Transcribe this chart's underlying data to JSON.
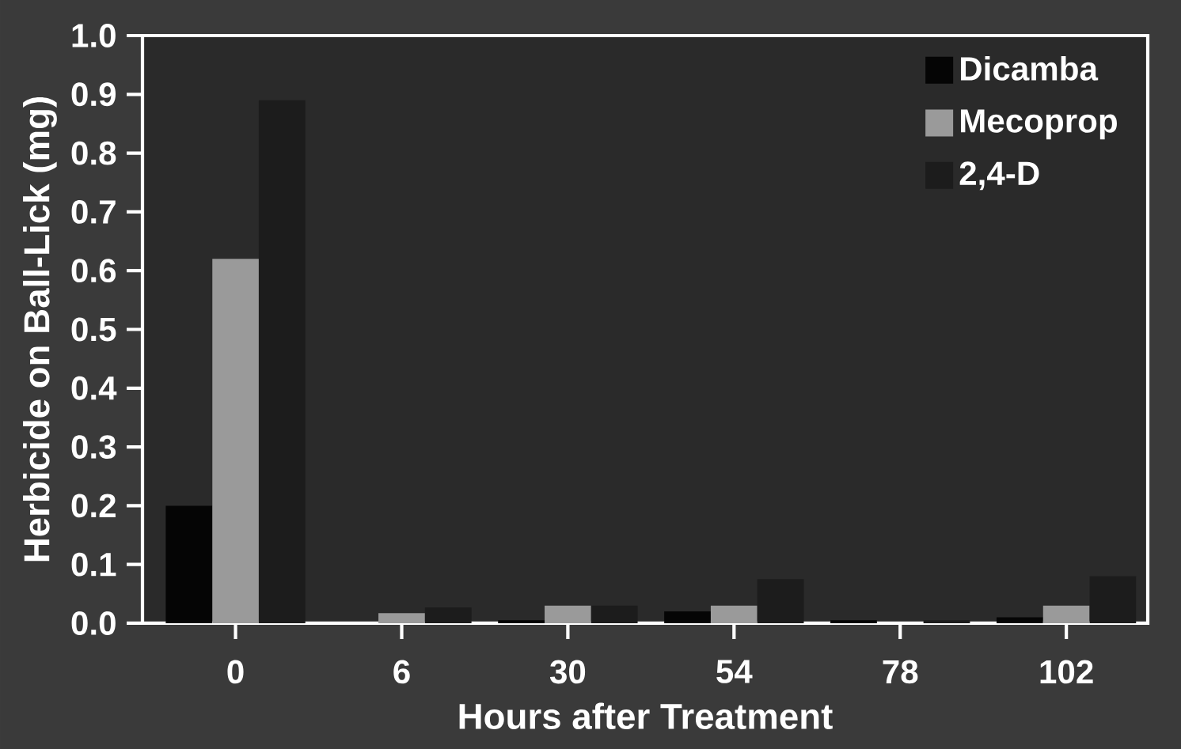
{
  "chart_data": {
    "type": "bar",
    "xlabel": "Hours after Treatment",
    "ylabel": "Herbicide on Ball-Lick (mg)",
    "categories": [
      "0",
      "6",
      "30",
      "54",
      "78",
      "102"
    ],
    "series": [
      {
        "name": "Dicamba",
        "color": "#050505",
        "values": [
          0.2,
          null,
          0.005,
          0.02,
          0.005,
          0.01
        ]
      },
      {
        "name": "Mecoprop",
        "color": "#9a9a9a",
        "values": [
          0.62,
          0.017,
          0.03,
          0.03,
          null,
          0.03
        ]
      },
      {
        "name": "2,4-D",
        "color": "#1c1c1c",
        "values": [
          0.89,
          0.027,
          0.03,
          0.075,
          0.005,
          0.08
        ]
      }
    ],
    "ylim": [
      0,
      1.0
    ],
    "yticks": [
      {
        "value": 0,
        "label": "0.0"
      },
      {
        "value": 0.1,
        "label": "0.1"
      },
      {
        "value": 0.2,
        "label": "0.2"
      },
      {
        "value": 0.3,
        "label": "0.3"
      },
      {
        "value": 0.4,
        "label": "0.4"
      },
      {
        "value": 0.5,
        "label": "0.5"
      },
      {
        "value": 0.6,
        "label": "0.6"
      },
      {
        "value": 0.7,
        "label": "0.7"
      },
      {
        "value": 0.8,
        "label": "0.8"
      },
      {
        "value": 0.9,
        "label": "0.9"
      },
      {
        "value": 1.0,
        "label": "1.0"
      }
    ],
    "legend": "top right",
    "grid": false
  }
}
